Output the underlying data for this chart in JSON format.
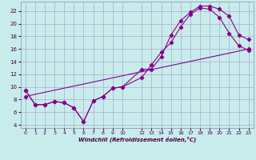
{
  "xlabel": "Windchill (Refroidissement éolien,°C)",
  "background_color": "#c8ecec",
  "grid_color": "#aaaacc",
  "line_color": "#880088",
  "xlim": [
    -0.5,
    23.5
  ],
  "ylim": [
    3.5,
    23.5
  ],
  "xticks": [
    0,
    1,
    2,
    3,
    4,
    5,
    6,
    7,
    8,
    9,
    10,
    12,
    13,
    14,
    15,
    16,
    17,
    18,
    19,
    20,
    21,
    22,
    23
  ],
  "yticks": [
    4,
    6,
    8,
    10,
    12,
    14,
    16,
    18,
    20,
    22
  ],
  "line1_x": [
    0,
    1,
    2,
    3,
    4,
    5,
    6,
    7,
    8,
    9,
    10,
    12,
    13,
    14,
    15,
    16,
    17,
    18,
    19,
    20,
    21,
    22,
    23
  ],
  "line1_y": [
    9.5,
    7.2,
    7.2,
    7.7,
    7.5,
    6.7,
    4.5,
    7.8,
    8.5,
    9.8,
    10.0,
    12.8,
    12.8,
    14.8,
    18.2,
    20.5,
    21.8,
    22.8,
    22.8,
    22.3,
    21.2,
    18.2,
    17.5
  ],
  "line2_x": [
    0,
    1,
    2,
    3,
    4,
    5,
    6,
    7,
    8,
    9,
    10,
    12,
    13,
    14,
    15,
    16,
    17,
    18,
    19,
    20,
    21,
    22,
    23
  ],
  "line2_y": [
    9.5,
    7.2,
    7.2,
    7.7,
    7.5,
    6.7,
    4.5,
    7.8,
    8.5,
    9.8,
    10.0,
    11.5,
    13.5,
    15.5,
    17.0,
    19.5,
    21.5,
    22.5,
    22.3,
    21.0,
    18.5,
    16.5,
    15.8
  ],
  "line3_x": [
    0,
    23
  ],
  "line3_y": [
    8.5,
    16.0
  ]
}
